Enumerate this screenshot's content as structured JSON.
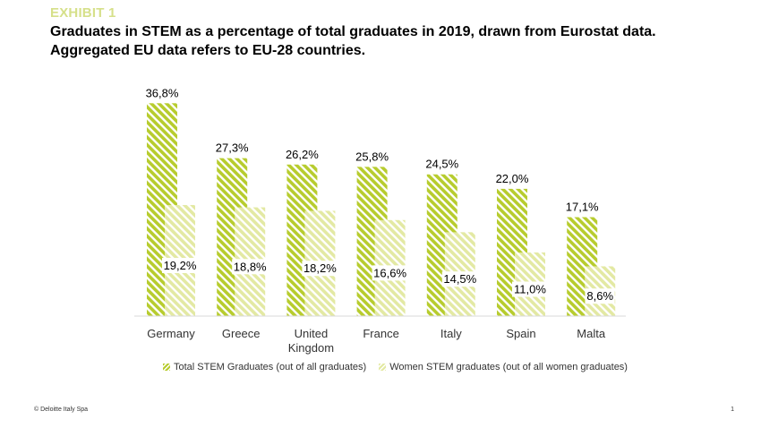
{
  "header": {
    "exhibit": "EXHIBIT 1",
    "title": "Graduates in STEM as a percentage of total graduates in 2019, drawn from Eurostat data. Aggregated EU data refers to EU-28 countries."
  },
  "chart_data": {
    "type": "bar",
    "categories": [
      "Germany",
      "Greece",
      "United Kingdom",
      "France",
      "Italy",
      "Spain",
      "Malta"
    ],
    "category_lines": [
      [
        "Germany"
      ],
      [
        "Greece"
      ],
      [
        "United",
        "Kingdom"
      ],
      [
        "France"
      ],
      [
        "Italy"
      ],
      [
        "Spain"
      ],
      [
        "Malta"
      ]
    ],
    "series": [
      {
        "name": "Total STEM Graduates (out of all graduates)",
        "values": [
          36.8,
          27.3,
          26.2,
          25.8,
          24.5,
          22.0,
          17.1
        ],
        "labels": [
          "36,8%",
          "27,3%",
          "26,2%",
          "25,8%",
          "24,5%",
          "22,0%",
          "17,1%"
        ],
        "color": "#b7cc2e"
      },
      {
        "name": "Women STEM graduates (out of all women graduates)",
        "values": [
          19.2,
          18.8,
          18.2,
          16.6,
          14.5,
          11.0,
          8.6
        ],
        "labels": [
          "19,2%",
          "18,8%",
          "18,2%",
          "16,6%",
          "14,5%",
          "11,0%",
          "8,6%"
        ],
        "color": "#e3e9a3"
      }
    ],
    "ylim": [
      0,
      37
    ],
    "grid": false,
    "legend_position": "bottom"
  },
  "legend": {
    "total_label": "Total STEM Graduates (out of all graduates)",
    "women_label": "Women STEM graduates (out of all women graduates)"
  },
  "footer": {
    "copyright": "© Deloitte Italy Spa",
    "page": "1"
  }
}
